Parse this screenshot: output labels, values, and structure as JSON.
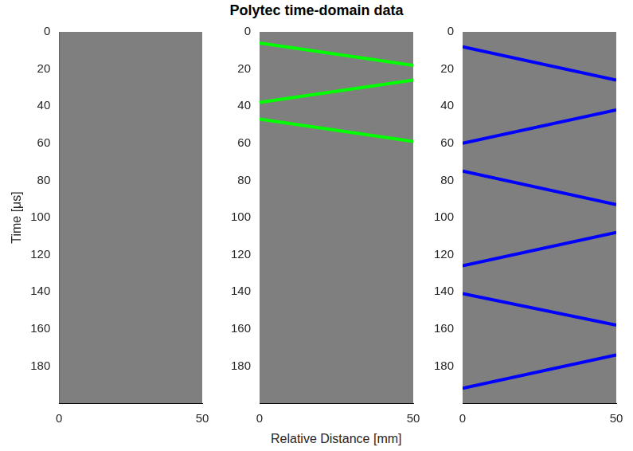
{
  "title": "Polytec time-domain data",
  "xlabel": "Relative Distance [mm]",
  "ylabel": "Time [μs]",
  "chart_data": [
    {
      "type": "line",
      "grid": false,
      "xlim": [
        0,
        50
      ],
      "xticks": [
        0,
        50
      ],
      "ylim": [
        0,
        200
      ],
      "yticks": [
        0,
        20,
        40,
        60,
        80,
        100,
        120,
        140,
        160,
        180
      ],
      "series": []
    },
    {
      "type": "line",
      "grid": false,
      "xlim": [
        0,
        50
      ],
      "xticks": [
        0,
        50
      ],
      "ylim": [
        0,
        200
      ],
      "yticks": [
        0,
        20,
        40,
        60,
        80,
        100,
        120,
        140,
        160,
        180
      ],
      "series": [
        {
          "color": "#00ff00",
          "x": [
            0,
            50
          ],
          "values": [
            6,
            18
          ]
        },
        {
          "color": "#00ff00",
          "x": [
            0,
            50
          ],
          "values": [
            38,
            26
          ]
        },
        {
          "color": "#00ff00",
          "x": [
            0,
            50
          ],
          "values": [
            47,
            59
          ]
        }
      ]
    },
    {
      "type": "line",
      "grid": false,
      "xlim": [
        0,
        50
      ],
      "xticks": [
        0,
        50
      ],
      "ylim": [
        0,
        200
      ],
      "yticks": [
        0,
        20,
        40,
        60,
        80,
        100,
        120,
        140,
        160,
        180
      ],
      "series": [
        {
          "color": "#0000ff",
          "x": [
            0,
            50
          ],
          "values": [
            8,
            26
          ]
        },
        {
          "color": "#0000ff",
          "x": [
            0,
            50
          ],
          "values": [
            60,
            42
          ]
        },
        {
          "color": "#0000ff",
          "x": [
            0,
            50
          ],
          "values": [
            75,
            93
          ]
        },
        {
          "color": "#0000ff",
          "x": [
            0,
            50
          ],
          "values": [
            126,
            108
          ]
        },
        {
          "color": "#0000ff",
          "x": [
            0,
            50
          ],
          "values": [
            141,
            158
          ]
        },
        {
          "color": "#0000ff",
          "x": [
            0,
            50
          ],
          "values": [
            192,
            174
          ]
        }
      ]
    }
  ]
}
